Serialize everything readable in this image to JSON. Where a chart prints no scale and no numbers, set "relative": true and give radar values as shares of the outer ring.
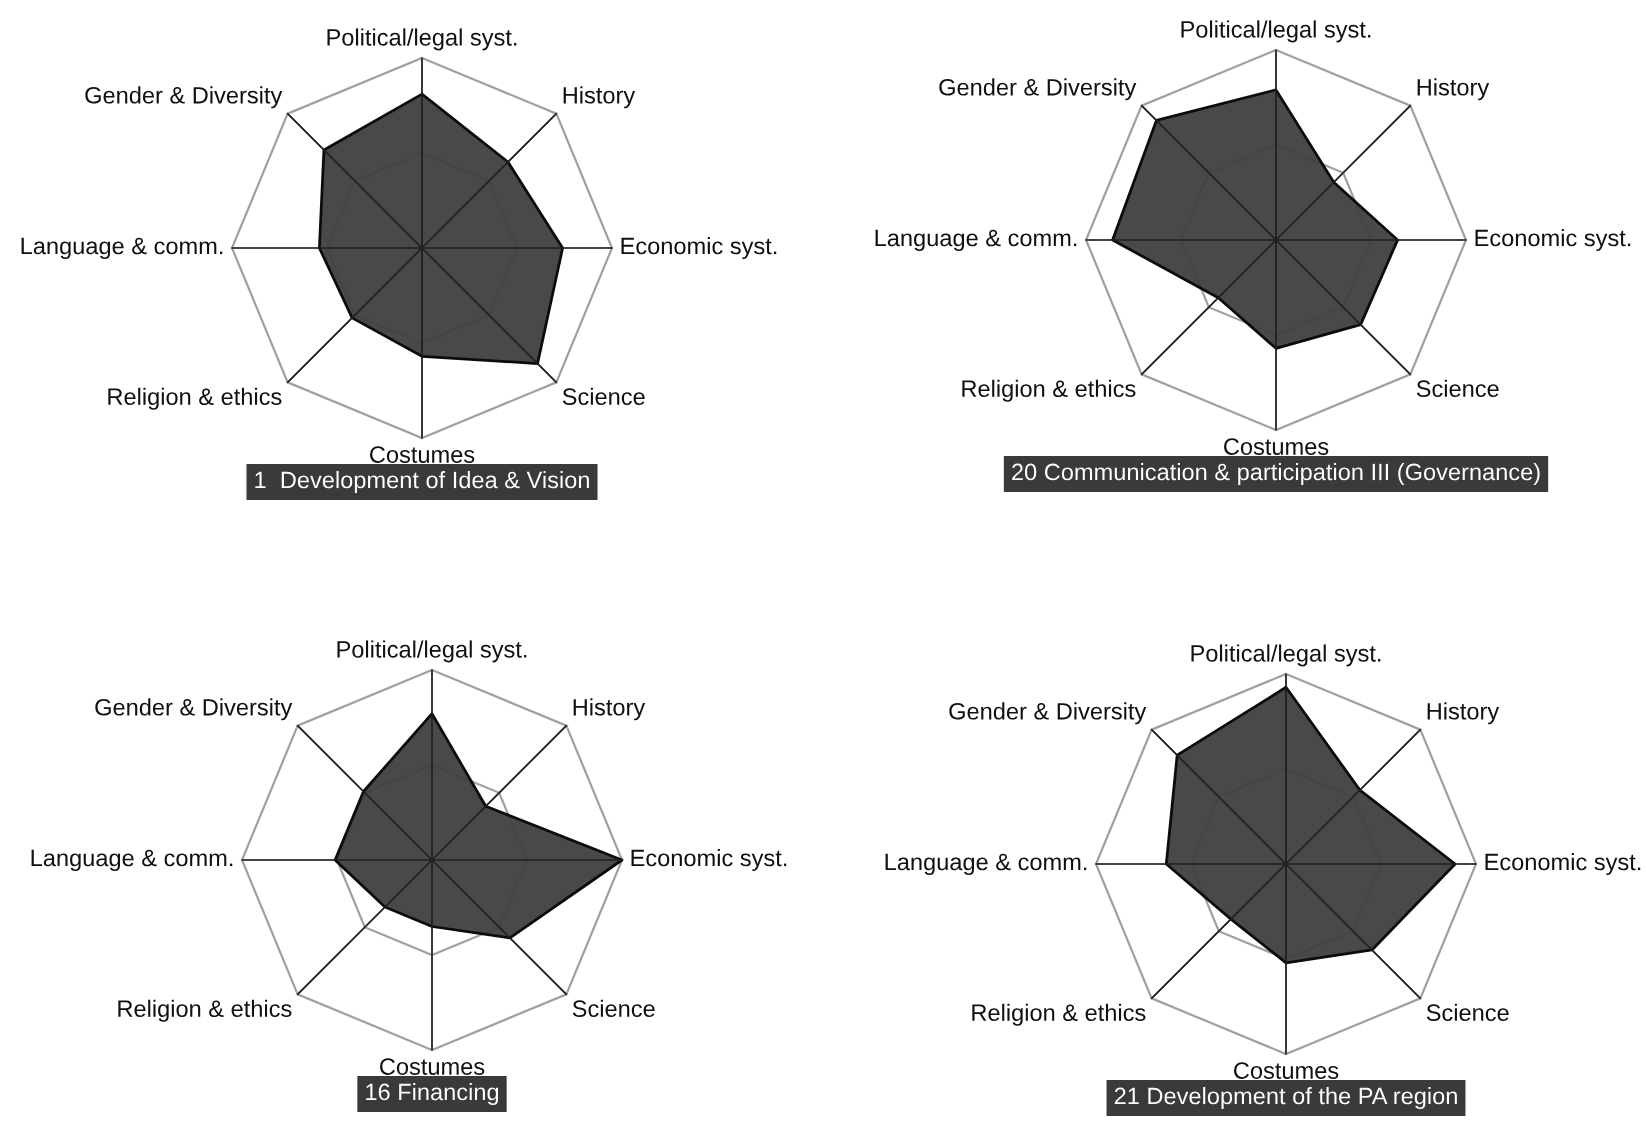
{
  "chart_data": [
    {
      "type": "radar",
      "relative": true,
      "grid": true,
      "title": "1  Development of Idea & Vision",
      "categories": [
        "Political/legal syst.",
        "History",
        "Economic syst.",
        "Science",
        "Costumes",
        "Religion & ethics",
        "Language & comm.",
        "Gender & Diversity"
      ],
      "series": [
        {
          "color": "#404040",
          "values": [
            0.81,
            0.64,
            0.74,
            0.86,
            0.57,
            0.52,
            0.54,
            0.73
          ]
        }
      ]
    },
    {
      "type": "radar",
      "relative": true,
      "grid": true,
      "title": "20 Communication & participation III (Governance)",
      "categories": [
        "Political/legal syst.",
        "History",
        "Economic syst.",
        "Science",
        "Costumes",
        "Religion & ethics",
        "Language & comm.",
        "Gender & Diversity"
      ],
      "series": [
        {
          "color": "#404040",
          "values": [
            0.79,
            0.43,
            0.64,
            0.63,
            0.57,
            0.43,
            0.86,
            0.89
          ]
        }
      ]
    },
    {
      "type": "radar",
      "relative": true,
      "grid": true,
      "title": "16 Financing",
      "categories": [
        "Political/legal syst.",
        "History",
        "Economic syst.",
        "Science",
        "Costumes",
        "Religion & ethics",
        "Language & comm.",
        "Gender & Diversity"
      ],
      "series": [
        {
          "color": "#404040",
          "values": [
            0.77,
            0.4,
            1.0,
            0.58,
            0.35,
            0.35,
            0.51,
            0.51
          ]
        }
      ]
    },
    {
      "type": "radar",
      "relative": true,
      "grid": true,
      "title": "21 Development of the PA region",
      "categories": [
        "Political/legal syst.",
        "History",
        "Economic syst.",
        "Science",
        "Costumes",
        "Religion & ethics",
        "Language & comm.",
        "Gender & Diversity"
      ],
      "series": [
        {
          "color": "#404040",
          "values": [
            0.93,
            0.55,
            0.89,
            0.64,
            0.52,
            0.41,
            0.63,
            0.81
          ]
        }
      ]
    }
  ]
}
